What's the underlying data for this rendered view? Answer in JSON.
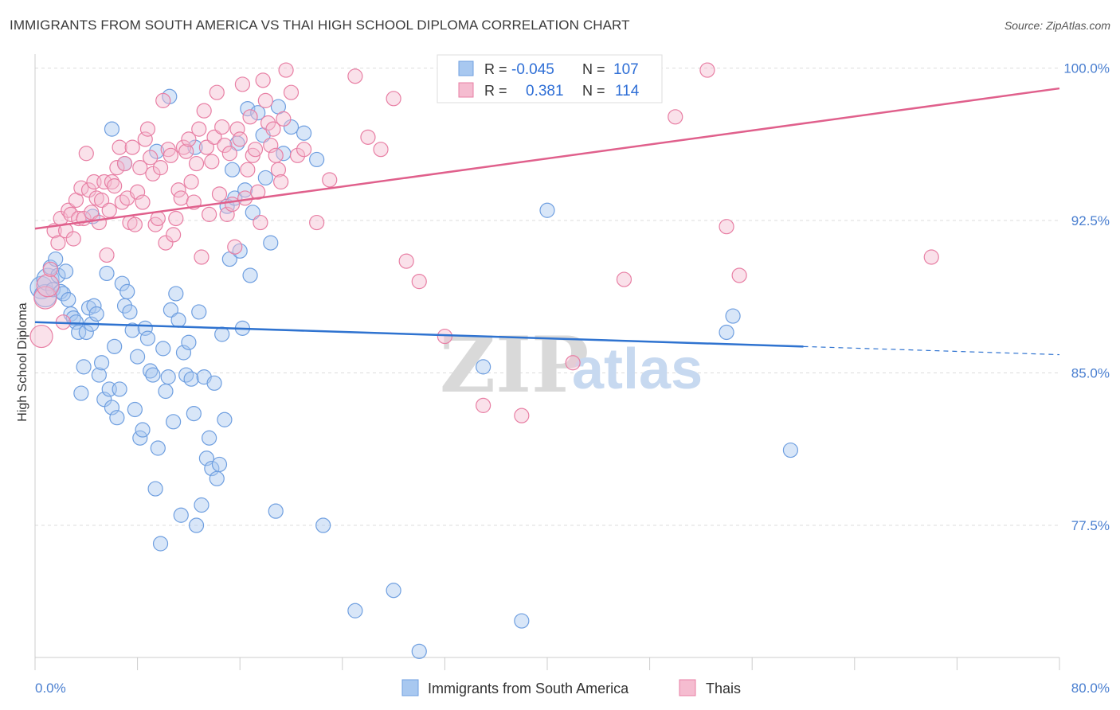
{
  "header": {
    "title": "IMMIGRANTS FROM SOUTH AMERICA VS THAI HIGH SCHOOL DIPLOMA CORRELATION CHART",
    "source": "Source: ZipAtlas.com"
  },
  "watermark": {
    "zip": "ZIP",
    "atlas": "atlas"
  },
  "colors": {
    "blue": "#6f9fe0",
    "blue_fill": "#a8c8f0",
    "blue_line": "#2f73d0",
    "pink": "#e87fa4",
    "pink_fill": "#f5bcd0",
    "pink_line": "#e0608c",
    "tick_text": "#4a7fd0",
    "grid": "#dddddd"
  },
  "legend_top": {
    "rows": [
      {
        "r_label": "R =",
        "r_value": "-0.045",
        "n_label": "N =",
        "n_value": "107"
      },
      {
        "r_label": "R =",
        "r_value": "0.381",
        "n_label": "N =",
        "n_value": "114"
      }
    ]
  },
  "legend_bottom": {
    "items": [
      "Immigrants from South America",
      "Thais"
    ]
  },
  "chart_data": {
    "type": "scatter",
    "xlabel": "",
    "ylabel": "High School Diploma",
    "xlim": [
      0,
      80
    ],
    "ylim": [
      71,
      101
    ],
    "x_tick_labels": [
      "0.0%",
      "80.0%"
    ],
    "y_ticks": [
      77.5,
      85.0,
      92.5,
      100.0
    ],
    "y_tick_labels": [
      "77.5%",
      "85.0%",
      "92.5%",
      "100.0%"
    ],
    "grid": "horizontal dashed",
    "legend_position": "bottom",
    "series": [
      {
        "name": "Immigrants from South America",
        "color": "blue",
        "trend": {
          "x0": 0,
          "y0": 87.5,
          "x1": 60,
          "y1": 86.3,
          "dash_to": 80,
          "dash_y": 85.9
        },
        "points": [
          [
            0.5,
            89.2
          ],
          [
            0.8,
            88.8
          ],
          [
            1.0,
            89.6
          ],
          [
            1.2,
            90.2
          ],
          [
            1.4,
            89.1
          ],
          [
            1.6,
            90.6
          ],
          [
            1.8,
            89.8
          ],
          [
            2.0,
            89.0
          ],
          [
            2.2,
            88.9
          ],
          [
            2.4,
            90.0
          ],
          [
            2.6,
            88.6
          ],
          [
            2.8,
            87.9
          ],
          [
            3.0,
            87.7
          ],
          [
            3.2,
            87.5
          ],
          [
            3.4,
            87.0
          ],
          [
            3.6,
            84.0
          ],
          [
            3.8,
            85.3
          ],
          [
            4.0,
            87.0
          ],
          [
            4.2,
            88.2
          ],
          [
            4.4,
            87.4
          ],
          [
            4.6,
            88.3
          ],
          [
            4.8,
            87.9
          ],
          [
            5.0,
            84.9
          ],
          [
            5.2,
            85.5
          ],
          [
            5.4,
            83.7
          ],
          [
            5.6,
            89.9
          ],
          [
            5.8,
            84.2
          ],
          [
            6.0,
            83.3
          ],
          [
            6.2,
            86.3
          ],
          [
            6.4,
            82.8
          ],
          [
            6.6,
            84.2
          ],
          [
            6.8,
            89.4
          ],
          [
            7.0,
            88.3
          ],
          [
            7.2,
            89.0
          ],
          [
            7.4,
            88.0
          ],
          [
            7.6,
            87.1
          ],
          [
            7.8,
            83.2
          ],
          [
            8.0,
            85.8
          ],
          [
            8.2,
            81.8
          ],
          [
            8.4,
            82.2
          ],
          [
            8.6,
            87.2
          ],
          [
            8.8,
            86.7
          ],
          [
            9.0,
            85.1
          ],
          [
            9.2,
            84.9
          ],
          [
            9.4,
            79.3
          ],
          [
            9.6,
            81.3
          ],
          [
            9.8,
            76.6
          ],
          [
            10.0,
            86.2
          ],
          [
            10.2,
            84.1
          ],
          [
            10.4,
            84.8
          ],
          [
            10.6,
            88.1
          ],
          [
            10.8,
            82.6
          ],
          [
            11.0,
            88.9
          ],
          [
            11.2,
            87.6
          ],
          [
            11.4,
            78.0
          ],
          [
            11.6,
            86.0
          ],
          [
            11.8,
            84.9
          ],
          [
            12.0,
            86.5
          ],
          [
            12.2,
            84.7
          ],
          [
            12.4,
            83.0
          ],
          [
            12.6,
            77.5
          ],
          [
            12.8,
            88.0
          ],
          [
            13.0,
            78.5
          ],
          [
            13.2,
            84.8
          ],
          [
            13.4,
            80.8
          ],
          [
            13.6,
            81.8
          ],
          [
            13.8,
            80.3
          ],
          [
            14.0,
            84.5
          ],
          [
            14.2,
            79.8
          ],
          [
            14.4,
            80.5
          ],
          [
            14.6,
            86.9
          ],
          [
            14.8,
            82.7
          ],
          [
            15.0,
            93.2
          ],
          [
            15.2,
            90.6
          ],
          [
            15.4,
            95.0
          ],
          [
            15.6,
            93.6
          ],
          [
            15.8,
            96.3
          ],
          [
            16.0,
            91.0
          ],
          [
            16.2,
            87.2
          ],
          [
            16.4,
            94.0
          ],
          [
            16.6,
            98.0
          ],
          [
            16.8,
            89.8
          ],
          [
            17.0,
            92.9
          ],
          [
            17.4,
            97.8
          ],
          [
            17.8,
            96.7
          ],
          [
            18.0,
            94.6
          ],
          [
            18.4,
            91.4
          ],
          [
            18.8,
            78.2
          ],
          [
            19.0,
            98.1
          ],
          [
            19.4,
            95.8
          ],
          [
            20.0,
            97.1
          ],
          [
            21.0,
            96.8
          ],
          [
            22.0,
            95.5
          ],
          [
            25.0,
            73.3
          ],
          [
            28.0,
            74.3
          ],
          [
            30.0,
            71.3
          ],
          [
            35.0,
            85.3
          ],
          [
            38.0,
            72.8
          ],
          [
            40.0,
            93.0
          ],
          [
            54.0,
            87.0
          ],
          [
            54.5,
            87.8
          ],
          [
            59.0,
            81.2
          ],
          [
            22.5,
            77.5
          ],
          [
            6.0,
            97.0
          ],
          [
            9.5,
            95.9
          ],
          [
            10.5,
            98.6
          ],
          [
            12.5,
            96.1
          ],
          [
            7.0,
            95.3
          ],
          [
            4.5,
            92.7
          ]
        ]
      },
      {
        "name": "Thais",
        "color": "pink",
        "trend": {
          "x0": 0,
          "y0": 92.1,
          "x1": 80,
          "y1": 99.0
        },
        "points": [
          [
            0.5,
            86.8
          ],
          [
            0.8,
            88.7
          ],
          [
            1.0,
            89.3
          ],
          [
            1.2,
            90.1
          ],
          [
            1.5,
            92.0
          ],
          [
            1.8,
            91.4
          ],
          [
            2.0,
            92.6
          ],
          [
            2.2,
            87.5
          ],
          [
            2.4,
            92.0
          ],
          [
            2.6,
            93.0
          ],
          [
            2.8,
            92.8
          ],
          [
            3.0,
            91.6
          ],
          [
            3.2,
            93.5
          ],
          [
            3.4,
            92.6
          ],
          [
            3.6,
            94.1
          ],
          [
            3.8,
            92.6
          ],
          [
            4.0,
            95.8
          ],
          [
            4.2,
            94.0
          ],
          [
            4.4,
            92.9
          ],
          [
            4.6,
            94.4
          ],
          [
            4.8,
            93.6
          ],
          [
            5.0,
            92.4
          ],
          [
            5.2,
            93.5
          ],
          [
            5.4,
            94.4
          ],
          [
            5.6,
            90.8
          ],
          [
            5.8,
            93.0
          ],
          [
            6.0,
            94.4
          ],
          [
            6.2,
            94.2
          ],
          [
            6.4,
            95.1
          ],
          [
            6.6,
            96.1
          ],
          [
            6.8,
            93.4
          ],
          [
            7.0,
            95.3
          ],
          [
            7.2,
            93.6
          ],
          [
            7.4,
            92.4
          ],
          [
            7.6,
            96.1
          ],
          [
            7.8,
            92.3
          ],
          [
            8.0,
            93.9
          ],
          [
            8.2,
            95.1
          ],
          [
            8.4,
            93.4
          ],
          [
            8.6,
            96.5
          ],
          [
            8.8,
            97.0
          ],
          [
            9.0,
            95.6
          ],
          [
            9.2,
            94.8
          ],
          [
            9.4,
            92.3
          ],
          [
            9.6,
            92.6
          ],
          [
            9.8,
            95.1
          ],
          [
            10.0,
            98.4
          ],
          [
            10.2,
            91.4
          ],
          [
            10.4,
            96.0
          ],
          [
            10.6,
            95.7
          ],
          [
            10.8,
            91.8
          ],
          [
            11.0,
            92.6
          ],
          [
            11.2,
            94.0
          ],
          [
            11.4,
            93.6
          ],
          [
            11.6,
            96.1
          ],
          [
            11.8,
            95.9
          ],
          [
            12.0,
            96.5
          ],
          [
            12.2,
            94.4
          ],
          [
            12.4,
            93.4
          ],
          [
            12.6,
            95.3
          ],
          [
            12.8,
            97.0
          ],
          [
            13.0,
            90.7
          ],
          [
            13.2,
            97.9
          ],
          [
            13.4,
            96.1
          ],
          [
            13.6,
            92.8
          ],
          [
            13.8,
            95.4
          ],
          [
            14.0,
            96.6
          ],
          [
            14.2,
            98.8
          ],
          [
            14.4,
            93.8
          ],
          [
            14.6,
            97.1
          ],
          [
            14.8,
            96.2
          ],
          [
            15.0,
            92.8
          ],
          [
            15.2,
            95.8
          ],
          [
            15.4,
            93.3
          ],
          [
            15.6,
            91.2
          ],
          [
            15.8,
            97.0
          ],
          [
            16.0,
            96.5
          ],
          [
            16.2,
            99.2
          ],
          [
            16.4,
            93.6
          ],
          [
            16.6,
            95.0
          ],
          [
            16.8,
            97.6
          ],
          [
            17.0,
            95.7
          ],
          [
            17.2,
            96.0
          ],
          [
            17.4,
            93.9
          ],
          [
            17.6,
            92.4
          ],
          [
            17.8,
            99.4
          ],
          [
            18.0,
            98.4
          ],
          [
            18.2,
            97.3
          ],
          [
            18.4,
            96.2
          ],
          [
            18.6,
            97.0
          ],
          [
            18.8,
            95.7
          ],
          [
            19.0,
            95.0
          ],
          [
            19.2,
            94.4
          ],
          [
            19.4,
            97.5
          ],
          [
            19.6,
            99.9
          ],
          [
            20.0,
            98.8
          ],
          [
            20.5,
            95.7
          ],
          [
            21.0,
            96.0
          ],
          [
            22.0,
            92.4
          ],
          [
            23.0,
            94.5
          ],
          [
            25.0,
            99.6
          ],
          [
            26.0,
            96.6
          ],
          [
            27.0,
            96.0
          ],
          [
            28.0,
            98.5
          ],
          [
            29.0,
            90.5
          ],
          [
            30.0,
            89.5
          ],
          [
            32.0,
            86.8
          ],
          [
            35.0,
            83.4
          ],
          [
            38.0,
            82.9
          ],
          [
            42.0,
            85.5
          ],
          [
            46.0,
            89.6
          ],
          [
            50.0,
            97.6
          ],
          [
            54.0,
            92.2
          ],
          [
            55.0,
            89.8
          ],
          [
            70.0,
            90.7
          ],
          [
            52.5,
            99.9
          ]
        ]
      }
    ]
  }
}
